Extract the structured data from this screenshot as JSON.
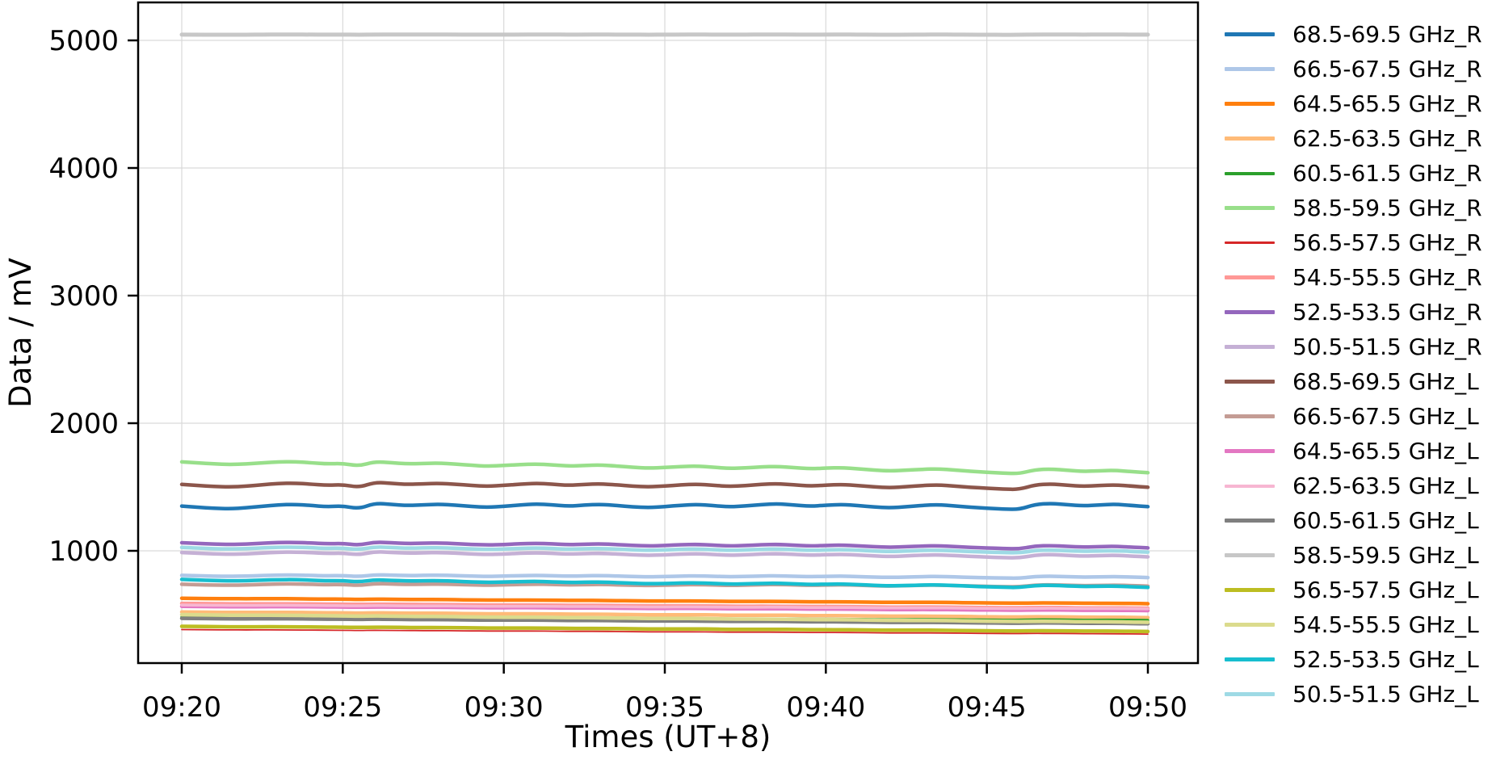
{
  "chart_data": {
    "type": "line",
    "title": "",
    "xlabel": "Times (UT+8)",
    "ylabel": "Data / mV",
    "x_tick_labels": [
      "09:20",
      "09:25",
      "09:30",
      "09:35",
      "09:40",
      "09:45",
      "09:50"
    ],
    "y_tick_labels": [
      1000,
      2000,
      3000,
      4000,
      5000
    ],
    "time_start": "09:20",
    "time_end": "09:50",
    "duration_min": 30,
    "sample_interval_s": 30,
    "ylim": [
      120,
      5280
    ],
    "grid": true,
    "grid_color": "#d9d9d9",
    "spine_color": "#000000",
    "background_color": "#ffffff",
    "legend_position": "outside-right",
    "wave_pattern": [
      0.1,
      -0.25,
      -0.55,
      -0.7,
      -0.45,
      0.05,
      0.45,
      0.6,
      0.3,
      -0.1,
      0.15,
      -0.75,
      0.95,
      0.6,
      0.25,
      0.45,
      0.65,
      0.35,
      -0.05,
      -0.3,
      0.0,
      0.4,
      0.7,
      0.45,
      0.05,
      0.35,
      0.6,
      0.25,
      -0.15,
      -0.4,
      -0.1,
      0.3,
      0.55,
      0.2,
      -0.2,
      0.1,
      0.5,
      0.75,
      0.4,
      0.0,
      0.3,
      0.55,
      0.2,
      -0.25,
      -0.5,
      -0.15,
      0.25,
      0.45,
      0.1,
      -0.3,
      -0.6,
      -0.85,
      -1.0,
      0.55,
      0.85,
      0.45,
      0.1,
      0.4,
      0.6,
      0.2,
      -0.15
    ],
    "series": [
      {
        "name": "68.5-69.5 GHz_R",
        "color": "#1f77b4",
        "start_mV": 1348,
        "end_mV": 1350,
        "wave_amp_mV": 26,
        "line_width": 4.5
      },
      {
        "name": "66.5-67.5 GHz_R",
        "color": "#aec7e8",
        "start_mV": 807,
        "end_mV": 792,
        "wave_amp_mV": 9,
        "line_width": 4.5
      },
      {
        "name": "64.5-65.5 GHz_R",
        "color": "#ff7f0e",
        "start_mV": 628,
        "end_mV": 586,
        "wave_amp_mV": 2,
        "line_width": 4.5
      },
      {
        "name": "62.5-63.5 GHz_R",
        "color": "#ffbb78",
        "start_mV": 521,
        "end_mV": 477,
        "wave_amp_mV": 2,
        "line_width": 4.5
      },
      {
        "name": "60.5-61.5 GHz_R",
        "color": "#2ca02c",
        "start_mV": 480,
        "end_mV": 456,
        "wave_amp_mV": 2,
        "line_width": 3.5
      },
      {
        "name": "58.5-59.5 GHz_R",
        "color": "#98df8a",
        "start_mV": 1695,
        "end_mV": 1615,
        "wave_amp_mV": 21,
        "line_width": 4.5
      },
      {
        "name": "56.5-57.5 GHz_R",
        "color": "#d62728",
        "start_mV": 383,
        "end_mV": 348,
        "wave_amp_mV": 1.5,
        "line_width": 1.8
      },
      {
        "name": "54.5-55.5 GHz_R",
        "color": "#ff9896",
        "start_mV": 588,
        "end_mV": 550,
        "wave_amp_mV": 2,
        "line_width": 4.5
      },
      {
        "name": "52.5-53.5 GHz_R",
        "color": "#9467bd",
        "start_mV": 1062,
        "end_mV": 1025,
        "wave_amp_mV": 15,
        "line_width": 4.5
      },
      {
        "name": "50.5-51.5 GHz_R",
        "color": "#c5b0d5",
        "start_mV": 985,
        "end_mV": 955,
        "wave_amp_mV": 15,
        "line_width": 4.5
      },
      {
        "name": "68.5-69.5 GHz_L",
        "color": "#8c564b",
        "start_mV": 1518,
        "end_mV": 1502,
        "wave_amp_mV": 24,
        "line_width": 4.5
      },
      {
        "name": "66.5-67.5 GHz_L",
        "color": "#c49c94",
        "start_mV": 737,
        "end_mV": 725,
        "wave_amp_mV": 9,
        "line_width": 4.5
      },
      {
        "name": "64.5-65.5 GHz_L",
        "color": "#e377c2",
        "start_mV": 565,
        "end_mV": 532,
        "wave_amp_mV": 2,
        "line_width": 4.5
      },
      {
        "name": "62.5-63.5 GHz_L",
        "color": "#f7b6d2",
        "start_mV": 575,
        "end_mV": 545,
        "wave_amp_mV": 2,
        "line_width": 3.5
      },
      {
        "name": "60.5-61.5 GHz_L",
        "color": "#7f7f7f",
        "start_mV": 471,
        "end_mV": 429,
        "wave_amp_mV": 2,
        "line_width": 4.5
      },
      {
        "name": "58.5-59.5 GHz_L",
        "color": "#c7c7c7",
        "start_mV": 5045,
        "end_mV": 5045,
        "wave_amp_mV": 1.2,
        "line_width": 5
      },
      {
        "name": "56.5-57.5 GHz_L",
        "color": "#bcbd22",
        "start_mV": 408,
        "end_mV": 368,
        "wave_amp_mV": 2,
        "line_width": 4.5
      },
      {
        "name": "54.5-55.5 GHz_L",
        "color": "#dbdb8d",
        "start_mV": 500,
        "end_mV": 440,
        "wave_amp_mV": 2,
        "line_width": 4.5
      },
      {
        "name": "52.5-53.5 GHz_L",
        "color": "#17becf",
        "start_mV": 775,
        "end_mV": 715,
        "wave_amp_mV": 11,
        "line_width": 4.5
      },
      {
        "name": "50.5-51.5 GHz_L",
        "color": "#9edae5",
        "start_mV": 1025,
        "end_mV": 992,
        "wave_amp_mV": 13,
        "line_width": 4.5
      }
    ]
  }
}
